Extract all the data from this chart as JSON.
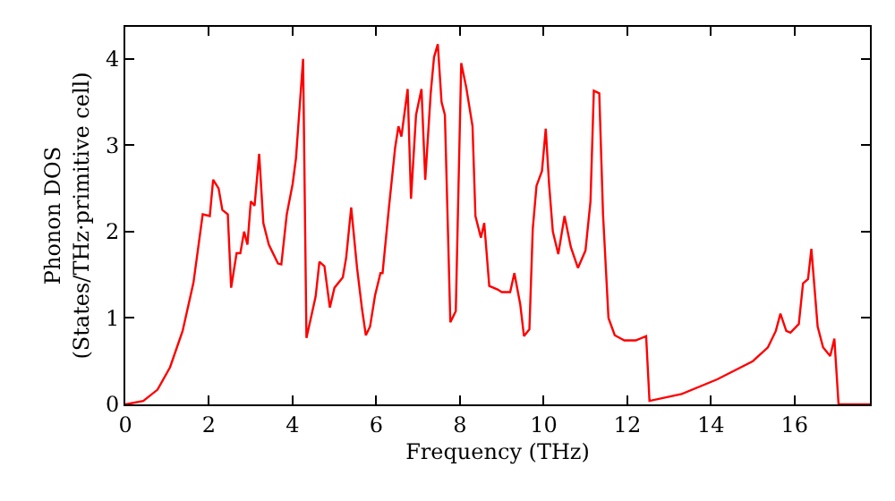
{
  "chart_data": {
    "type": "line",
    "xlabel": "Frequency (THz)",
    "ylabel": "Phonon DOS\n(States/THz·primitive cell)",
    "x": [
      0,
      0.43,
      0.77,
      1.07,
      1.37,
      1.63,
      1.85,
      2.02,
      2.1,
      2.23,
      2.32,
      2.45,
      2.53,
      2.66,
      2.75,
      2.84,
      2.92,
      3.0,
      3.09,
      3.2,
      3.3,
      3.43,
      3.5,
      3.65,
      3.73,
      3.86,
      4.0,
      4.08,
      4.25,
      4.33,
      4.46,
      4.55,
      4.64,
      4.76,
      4.89,
      5.0,
      5.2,
      5.28,
      5.4,
      5.54,
      5.66,
      5.75,
      5.85,
      5.97,
      6.1,
      6.15,
      6.3,
      6.45,
      6.53,
      6.6,
      6.75,
      6.83,
      6.95,
      7.08,
      7.17,
      7.3,
      7.38,
      7.47,
      7.56,
      7.64,
      7.77,
      7.9,
      8.03,
      8.15,
      8.3,
      8.37,
      8.5,
      8.58,
      8.7,
      8.9,
      9.0,
      9.2,
      9.3,
      9.44,
      9.53,
      9.66,
      9.74,
      9.83,
      9.96,
      10.05,
      10.13,
      10.22,
      10.35,
      10.5,
      10.65,
      10.82,
      11.0,
      11.12,
      11.2,
      11.33,
      11.42,
      11.55,
      11.7,
      11.93,
      12.2,
      12.45,
      12.53,
      13.3,
      14.15,
      15.0,
      15.36,
      15.55,
      15.66,
      15.8,
      15.9,
      16.1,
      16.2,
      16.32,
      16.4,
      16.55,
      16.68,
      16.85,
      16.95,
      17.05,
      17.8
    ],
    "series": [
      {
        "color": "#ff0000",
        "values": [
          0,
          0.04,
          0.17,
          0.43,
          0.85,
          1.41,
          2.2,
          2.18,
          2.6,
          2.5,
          2.25,
          2.2,
          1.35,
          1.75,
          1.75,
          2.0,
          1.85,
          2.35,
          2.3,
          2.9,
          2.1,
          1.85,
          1.78,
          1.63,
          1.62,
          2.2,
          2.55,
          2.85,
          4.0,
          0.77,
          1.05,
          1.25,
          1.65,
          1.6,
          1.12,
          1.35,
          1.47,
          1.7,
          2.28,
          1.58,
          1.1,
          0.8,
          0.9,
          1.26,
          1.52,
          1.52,
          2.27,
          2.97,
          3.22,
          3.1,
          3.65,
          2.38,
          3.35,
          3.65,
          2.6,
          3.6,
          4.02,
          4.17,
          3.5,
          3.35,
          0.95,
          1.08,
          3.95,
          3.67,
          3.22,
          2.18,
          1.93,
          2.1,
          1.37,
          1.33,
          1.3,
          1.3,
          1.52,
          1.16,
          0.79,
          0.87,
          2.03,
          2.53,
          2.7,
          3.19,
          2.55,
          2.0,
          1.74,
          2.18,
          1.82,
          1.58,
          1.78,
          2.35,
          3.63,
          3.6,
          2.2,
          1.0,
          0.8,
          0.74,
          0.74,
          0.79,
          0.04,
          0.12,
          0.29,
          0.5,
          0.66,
          0.85,
          1.05,
          0.85,
          0.83,
          0.93,
          1.4,
          1.45,
          1.8,
          0.9,
          0.66,
          0.56,
          0.76,
          0,
          0
        ]
      }
    ],
    "xlim": [
      0,
      17.8
    ],
    "ylim": [
      0,
      4.37
    ],
    "xticks": [
      0,
      2,
      4,
      6,
      8,
      10,
      12,
      14,
      16
    ],
    "yticks": [
      0,
      1,
      2,
      3,
      4
    ],
    "marker": "none",
    "line_style": "solid"
  }
}
